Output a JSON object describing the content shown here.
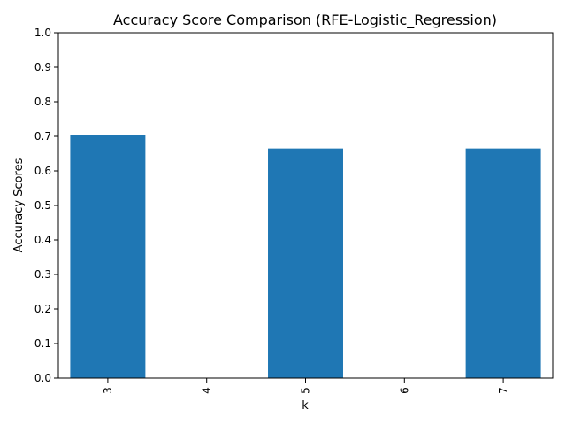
{
  "chart_data": {
    "type": "bar",
    "title": "Accuracy Score Comparison (RFE-Logistic_Regression)",
    "xlabel": "k",
    "ylabel": "Accuracy Scores",
    "categories": [
      "3",
      "4",
      "5",
      "6",
      "7"
    ],
    "values": [
      0.703,
      0.0,
      0.665,
      0.0,
      0.665
    ],
    "ylim": [
      0,
      1.0
    ],
    "yticks": [
      "0.0",
      "0.1",
      "0.2",
      "0.3",
      "0.4",
      "0.5",
      "0.6",
      "0.7",
      "0.8",
      "0.9",
      "1.0"
    ],
    "bar_color": "#1f77b4",
    "grid": false,
    "legend": "none"
  }
}
